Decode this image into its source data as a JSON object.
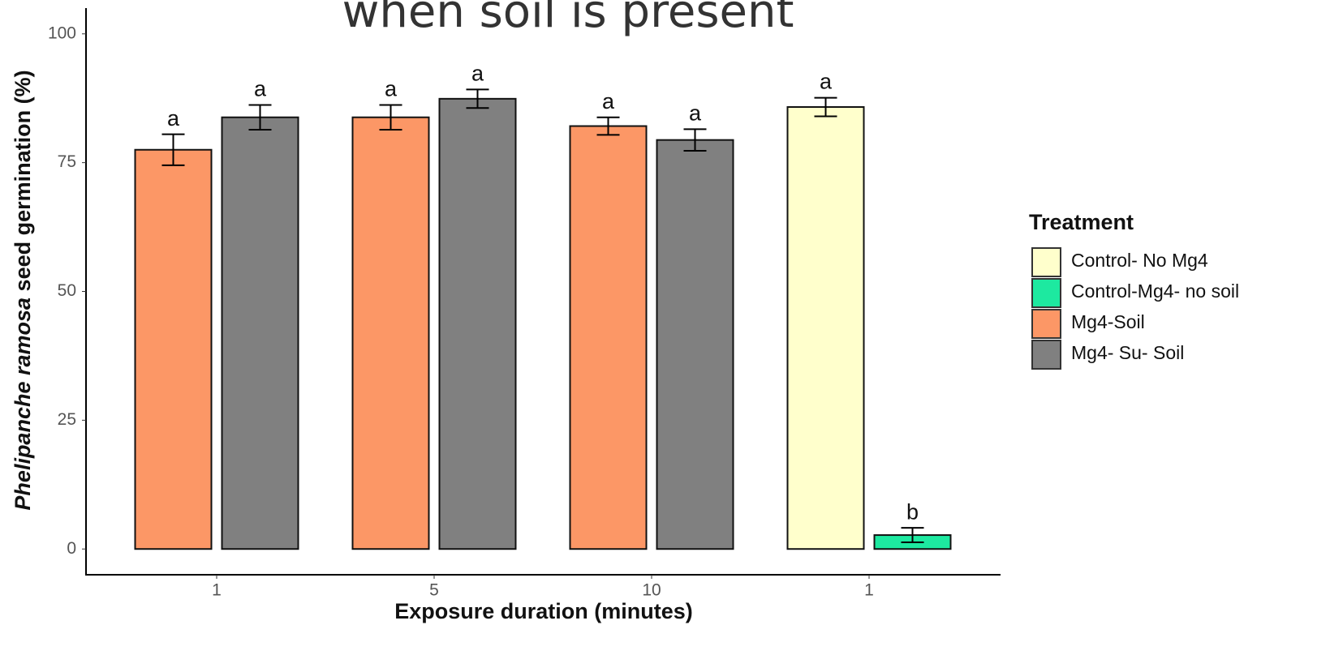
{
  "chart_data": {
    "type": "bar",
    "title": "when soil is present",
    "x_label": "Exposure duration (minutes)",
    "y_label_italic": "Phelipanche ramosa",
    "y_label_rest": "seed germination (%)",
    "legend_title": "Treatment",
    "legend_position": "right",
    "categories": [
      "1",
      "5",
      "10",
      "1"
    ],
    "ylim": [
      -5,
      105
    ],
    "yticks": [
      0,
      25,
      50,
      75,
      100
    ],
    "grid": false,
    "series": [
      {
        "name": "Control- No Mg4",
        "color": "#ffffcc",
        "values": [
          null,
          null,
          null,
          85.8
        ],
        "errors": [
          null,
          null,
          null,
          1.8
        ],
        "letters": [
          null,
          null,
          null,
          "a"
        ]
      },
      {
        "name": "Control-Mg4- no soil",
        "color": "#1de9a0",
        "values": [
          null,
          null,
          null,
          2.7
        ],
        "errors": [
          null,
          null,
          null,
          1.4
        ],
        "letters": [
          null,
          null,
          null,
          "b"
        ]
      },
      {
        "name": "Mg4-Soil",
        "color": "#fc9766",
        "values": [
          77.5,
          83.8,
          82.1,
          null
        ],
        "errors": [
          3.0,
          2.4,
          1.7,
          null
        ],
        "letters": [
          "a",
          "a",
          "a",
          null
        ]
      },
      {
        "name": "Mg4- Su- Soil",
        "color": "#808080",
        "values": [
          83.8,
          87.4,
          79.4,
          null
        ],
        "errors": [
          2.4,
          1.8,
          2.1,
          null
        ],
        "letters": [
          "a",
          "a",
          "a",
          null
        ]
      }
    ]
  }
}
